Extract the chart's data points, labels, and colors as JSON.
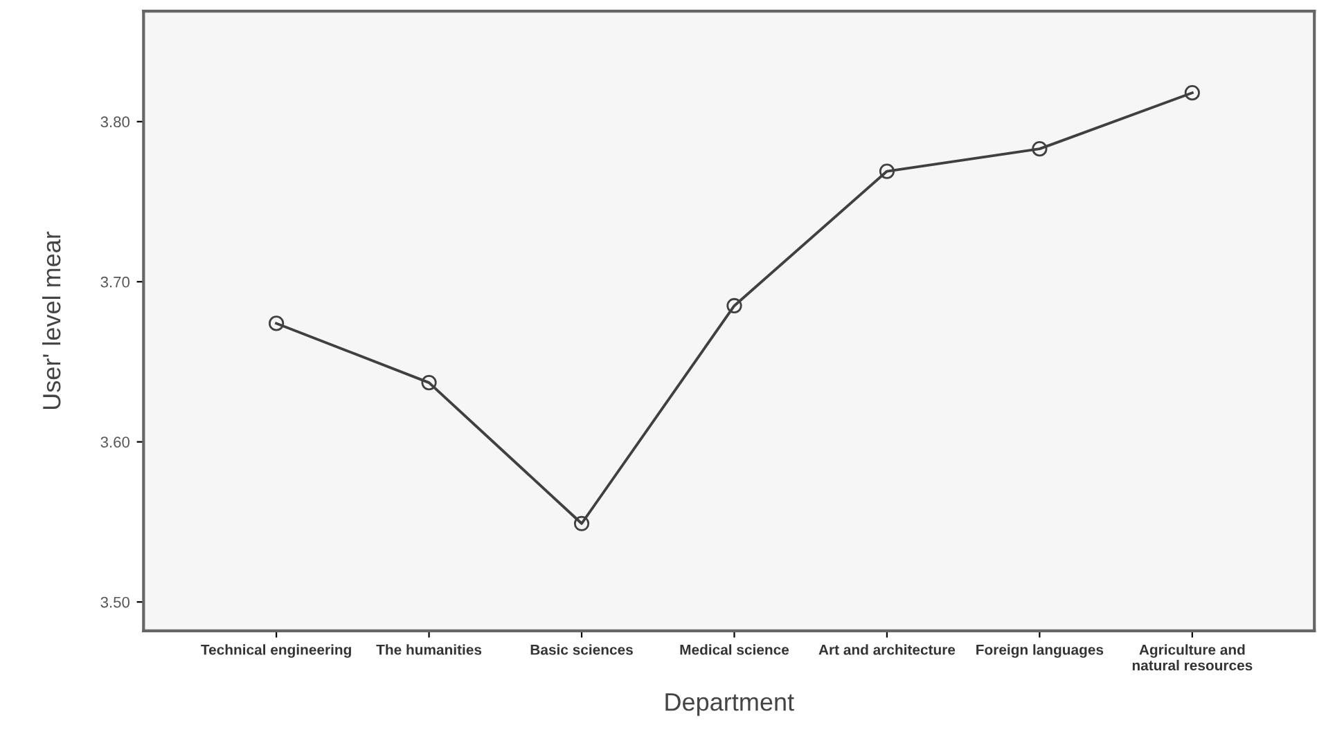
{
  "chart_data": {
    "type": "line",
    "xlabel": "Department",
    "ylabel": "User' level mear",
    "categories": [
      "Technical engineering",
      "The humanities",
      "Basic sciences",
      "Medical science",
      "Art and architecture",
      "Foreign languages",
      "Agriculture and\nnatural resources"
    ],
    "series": [
      {
        "color": "#404040",
        "values": [
          3.674,
          3.637,
          3.549,
          3.685,
          3.769,
          3.783,
          3.818
        ]
      }
    ],
    "ylim": [
      3.482,
      3.869
    ],
    "yticks": [
      {
        "value": 3.5,
        "label": "3.50"
      },
      {
        "value": 3.6,
        "label": "3.60"
      },
      {
        "value": 3.7,
        "label": "3.70"
      },
      {
        "value": 3.8,
        "label": "3.80"
      }
    ],
    "marker": "circle",
    "line_style": "solid",
    "grid": false,
    "legend": false
  }
}
